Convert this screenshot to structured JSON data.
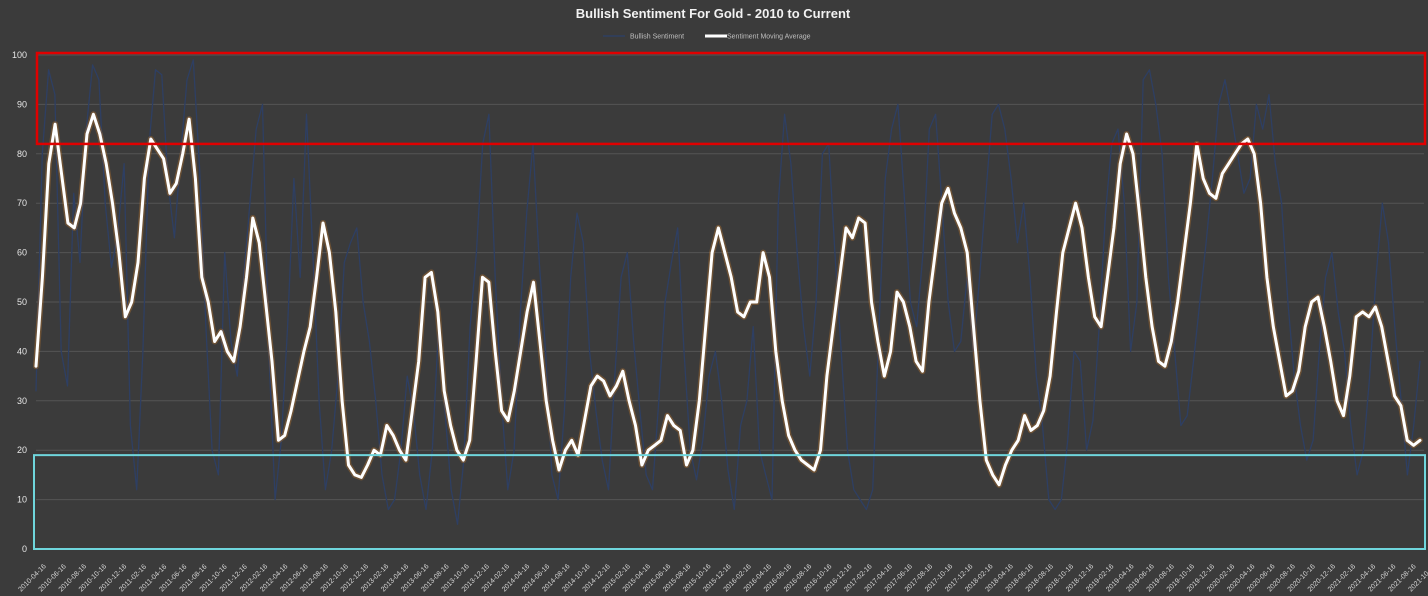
{
  "chart_data": {
    "type": "line",
    "title": "Bullish Sentiment For Gold - 2010 to Current",
    "ylim": [
      0,
      100
    ],
    "yticks": [
      0,
      10,
      20,
      30,
      40,
      50,
      60,
      70,
      80,
      90,
      100
    ],
    "grid": true,
    "legend_position": "top",
    "x_tick_labels": [
      "2010-04-16",
      "2010-06-16",
      "2010-08-16",
      "2010-10-16",
      "2010-12-16",
      "2011-02-16",
      "2011-04-16",
      "2011-06-16",
      "2011-08-16",
      "2011-10-16",
      "2011-12-16",
      "2012-02-16",
      "2012-04-16",
      "2012-06-16",
      "2012-08-16",
      "2012-10-16",
      "2012-12-16",
      "2013-02-16",
      "2013-04-16",
      "2013-06-16",
      "2013-08-16",
      "2013-10-16",
      "2013-12-16",
      "2014-02-16",
      "2014-04-16",
      "2014-06-16",
      "2014-08-16",
      "2014-10-16",
      "2014-12-16",
      "2015-02-16",
      "2015-04-16",
      "2015-06-16",
      "2015-08-16",
      "2015-10-16",
      "2015-12-16",
      "2016-02-16",
      "2016-04-16",
      "2016-06-16",
      "2016-08-16",
      "2016-10-16",
      "2016-12-16",
      "2017-02-16",
      "2017-04-16",
      "2017-06-16",
      "2017-08-16",
      "2017-10-16",
      "2017-12-16",
      "2018-02-16",
      "2018-04-16",
      "2018-06-16",
      "2018-08-16",
      "2018-10-16",
      "2018-12-16",
      "2019-02-16",
      "2019-04-16",
      "2019-06-16",
      "2019-08-16",
      "2019-10-16",
      "2019-12-16",
      "2020-02-16",
      "2020-04-16",
      "2020-06-16",
      "2020-08-16",
      "2020-10-16",
      "2020-12-16",
      "2021-02-16",
      "2021-04-16",
      "2021-06-16",
      "2021-08-16",
      "2021-10-16"
    ],
    "series": [
      {
        "name": "Bullish Sentiment",
        "color": "#2e3f63",
        "values": [
          32,
          80,
          97,
          92,
          40,
          33,
          72,
          58,
          85,
          98,
          95,
          70,
          57,
          64,
          78,
          25,
          12,
          40,
          82,
          97,
          96,
          74,
          63,
          80,
          95,
          99,
          77,
          45,
          20,
          15,
          60,
          42,
          35,
          55,
          70,
          85,
          90,
          40,
          10,
          22,
          45,
          75,
          55,
          88,
          60,
          30,
          12,
          20,
          35,
          58,
          62,
          65,
          50,
          42,
          30,
          15,
          8,
          10,
          20,
          35,
          28,
          15,
          8,
          20,
          45,
          28,
          12,
          5,
          18,
          45,
          60,
          82,
          88,
          55,
          30,
          12,
          20,
          48,
          68,
          82,
          58,
          40,
          15,
          10,
          28,
          55,
          68,
          62,
          40,
          28,
          18,
          12,
          35,
          55,
          60,
          42,
          28,
          15,
          12,
          30,
          50,
          58,
          65,
          40,
          20,
          14,
          22,
          35,
          40,
          30,
          16,
          8,
          25,
          30,
          45,
          20,
          15,
          10,
          70,
          88,
          78,
          60,
          45,
          35,
          50,
          80,
          82,
          60,
          40,
          20,
          12,
          10,
          8,
          12,
          45,
          75,
          85,
          90,
          72,
          50,
          45,
          60,
          85,
          88,
          70,
          50,
          40,
          42,
          55,
          40,
          55,
          72,
          88,
          90,
          85,
          75,
          62,
          70,
          55,
          35,
          25,
          10,
          8,
          10,
          22,
          40,
          38,
          20,
          26,
          45,
          68,
          82,
          85,
          70,
          40,
          50,
          95,
          97,
          90,
          80,
          55,
          40,
          25,
          27,
          38,
          50,
          62,
          75,
          90,
          95,
          88,
          80,
          72,
          75,
          90,
          85,
          92,
          78,
          70,
          50,
          35,
          25,
          18,
          22,
          40,
          55,
          60,
          48,
          40,
          25,
          15,
          20,
          35,
          55,
          70,
          62,
          45,
          30,
          15,
          25,
          38
        ]
      },
      {
        "name": "Sentiment Moving Average",
        "color": "#ffffff",
        "values": [
          37,
          55,
          78,
          86,
          76,
          66,
          65,
          70,
          84,
          88,
          84,
          78,
          70,
          60,
          47,
          50,
          58,
          75,
          83,
          81,
          79,
          72,
          74,
          80,
          87,
          75,
          55,
          50,
          42,
          44,
          40,
          38,
          45,
          55,
          67,
          62,
          50,
          38,
          22,
          23,
          28,
          34,
          40,
          45,
          55,
          66,
          60,
          48,
          30,
          17,
          15,
          14.5,
          17,
          20,
          19,
          25,
          23,
          20,
          18,
          28,
          38,
          55,
          56,
          48,
          32,
          25,
          20,
          18,
          22,
          38,
          55,
          54,
          40,
          28,
          26,
          32,
          40,
          48,
          54,
          42,
          30,
          22,
          16,
          20,
          22,
          19,
          26,
          33,
          35,
          34,
          31,
          33,
          36,
          30,
          25,
          17,
          20,
          21,
          22,
          27,
          25,
          24,
          17,
          20,
          30,
          45,
          60,
          65,
          60,
          55,
          48,
          47,
          50,
          50,
          60,
          55,
          40,
          30,
          23,
          20,
          18,
          17,
          16,
          20,
          35,
          45,
          55,
          65,
          63,
          67,
          66,
          50,
          42,
          35,
          40,
          52,
          50,
          45,
          38,
          36,
          50,
          60,
          70,
          73,
          68,
          65,
          60,
          45,
          30,
          18,
          15,
          13,
          17,
          20,
          22,
          27,
          24,
          25,
          28,
          35,
          48,
          60,
          65,
          70,
          65,
          55,
          47,
          45,
          55,
          65,
          78,
          84,
          80,
          68,
          55,
          45,
          38,
          37,
          42,
          50,
          60,
          70,
          82,
          75,
          72,
          71,
          76,
          78,
          80,
          82,
          83,
          80,
          70,
          55,
          45,
          38,
          31,
          32,
          36,
          45,
          50,
          51,
          45,
          38,
          30,
          27,
          35,
          47,
          48,
          47,
          49,
          45,
          38,
          31,
          29,
          22,
          21,
          22
        ]
      }
    ]
  },
  "annotations": {
    "high_zone": {
      "y_from": 82,
      "y_to": 100,
      "color": "#e00000"
    },
    "low_zone": {
      "y_from": 0,
      "y_to": 19,
      "color": "#6fd6dc"
    }
  }
}
